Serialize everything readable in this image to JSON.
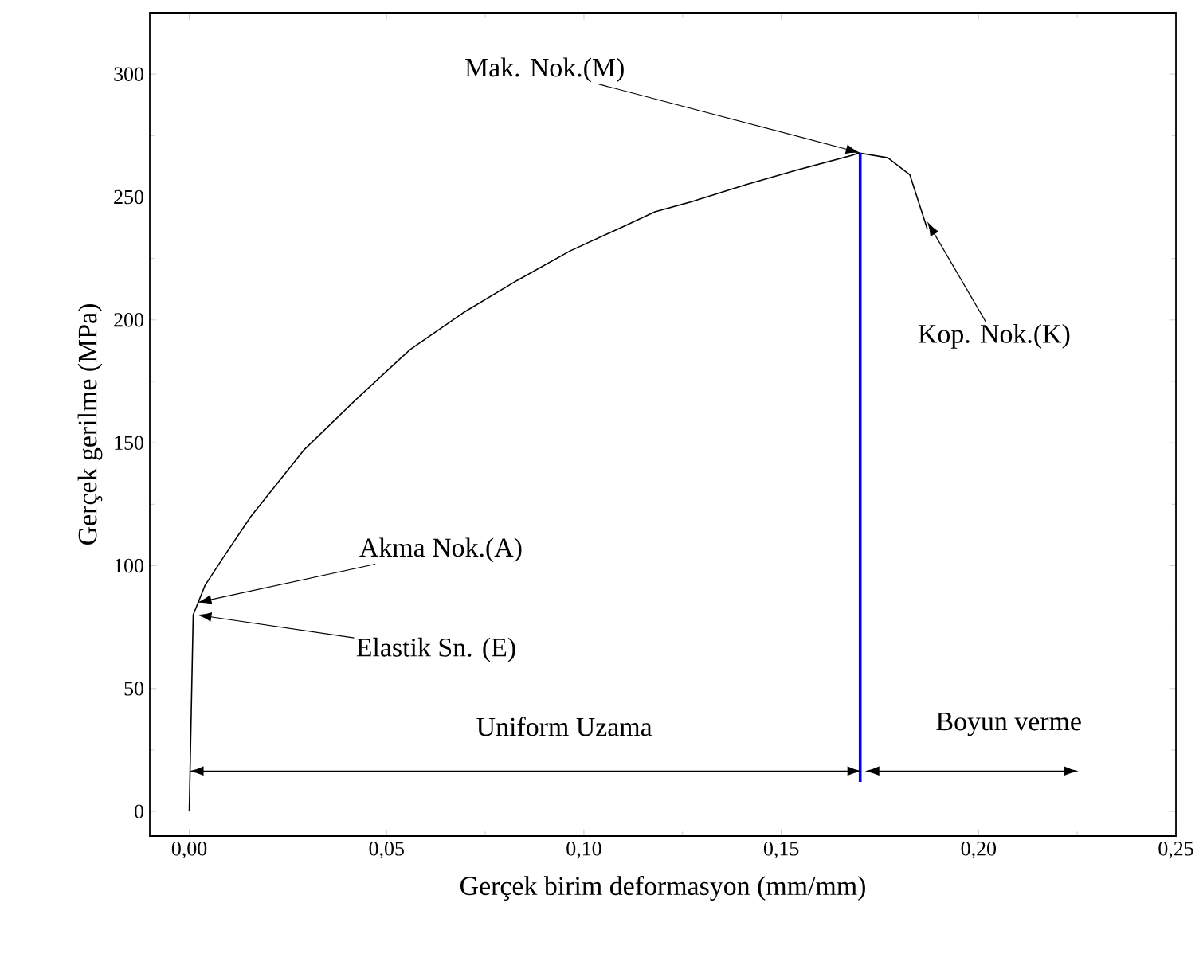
{
  "chart_data": {
    "type": "line",
    "xlabel": "Gerçek birim deformasyon (mm/mm)",
    "ylabel": "Gerçek gerilme (MPa)",
    "xlim": [
      -0.01,
      0.25
    ],
    "ylim": [
      -10,
      325
    ],
    "xticks": [
      {
        "value": 0,
        "label": "0,00"
      },
      {
        "value": 0.05,
        "label": "0,05"
      },
      {
        "value": 0.1,
        "label": "0,10"
      },
      {
        "value": 0.15,
        "label": "0,15"
      },
      {
        "value": 0.2,
        "label": "0,20"
      },
      {
        "value": 0.25,
        "label": "0,25"
      }
    ],
    "yticks": [
      0,
      50,
      100,
      150,
      200,
      250,
      300
    ],
    "grid": false,
    "marker": "none",
    "line_style": "solid",
    "series": [
      {
        "color": "#000000",
        "x": [
          0,
          0.0005,
          0.001,
          0.0015,
          0.004,
          0.0089,
          0.0156,
          0.029,
          0.0425,
          0.056,
          0.0695,
          0.083,
          0.0964,
          0.11,
          0.118,
          0.127,
          0.141,
          0.154,
          0.168,
          0.1696,
          0.177,
          0.1826,
          0.187
        ],
        "values": [
          0,
          40,
          80,
          82,
          92,
          104,
          120,
          147,
          168,
          188,
          203,
          216,
          228,
          238,
          244,
          248,
          255,
          261,
          267,
          268,
          266,
          259,
          237
        ]
      },
      {
        "color": "#0000ff",
        "x": [
          0.17,
          0.17
        ],
        "values": [
          268,
          12
        ]
      }
    ],
    "annotations": [
      {
        "text": "Mak. Nok.(M)",
        "x": 0.17,
        "y": 268
      },
      {
        "text": "Kop. Nok.(K)",
        "x": 0.187,
        "y": 240
      },
      {
        "text": "Akma Nok.(A)",
        "x": 0.002,
        "y": 85
      },
      {
        "text": "Elastik Sn. (E)",
        "x": 0.002,
        "y": 80
      },
      "Uniform Uzama",
      "Boyun verme"
    ]
  }
}
